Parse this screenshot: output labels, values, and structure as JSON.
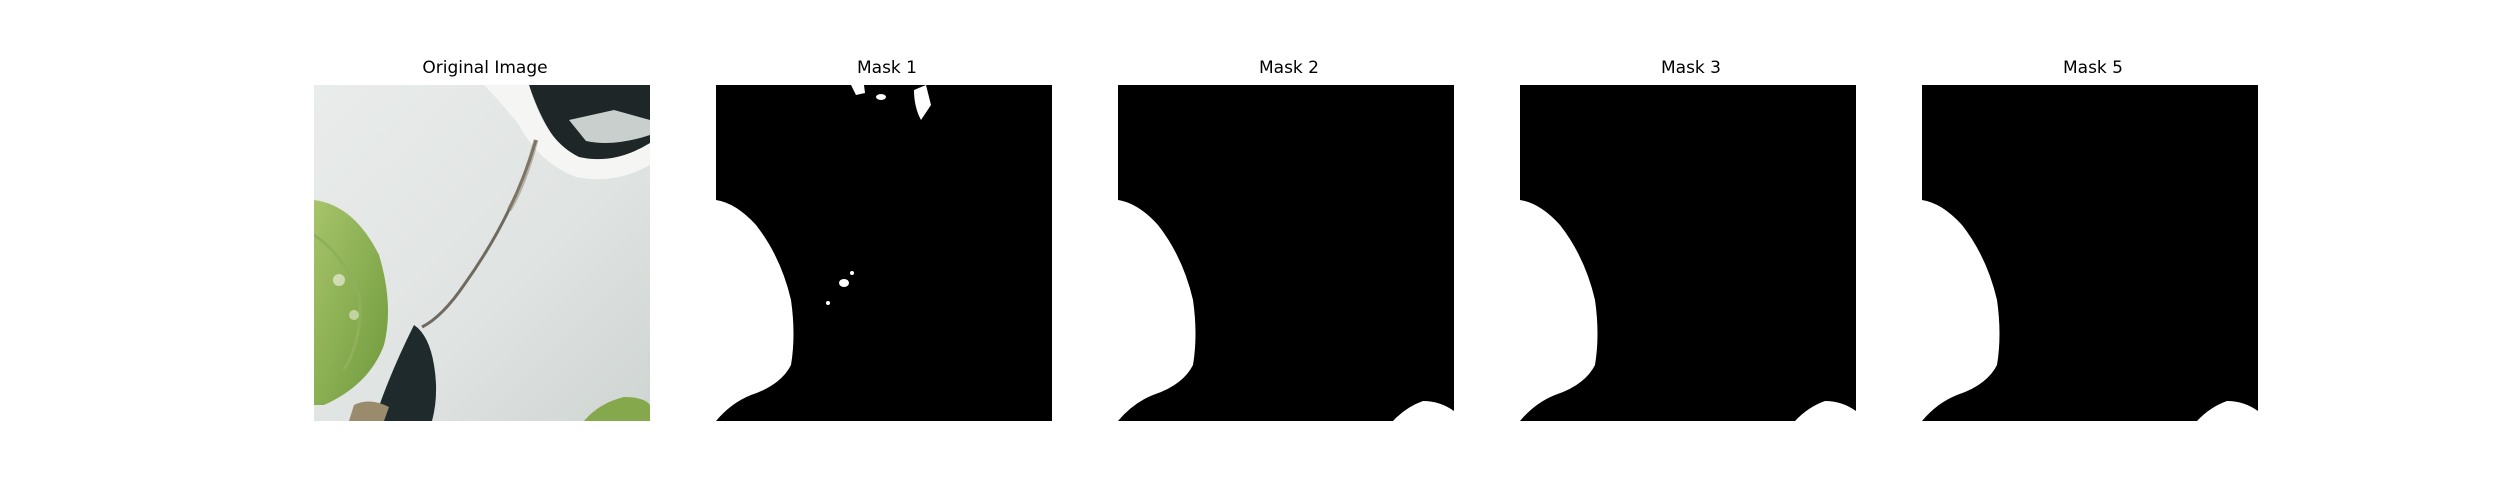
{
  "panels": [
    {
      "title": "Original Image"
    },
    {
      "title": "Mask 1"
    },
    {
      "title": "Mask 2"
    },
    {
      "title": "Mask 3"
    },
    {
      "title": "Mask 5"
    }
  ],
  "colors": {
    "background": "#ffffff",
    "mask_foreground": "#ffffff",
    "mask_background": "#000000",
    "title_text": "#000000"
  }
}
